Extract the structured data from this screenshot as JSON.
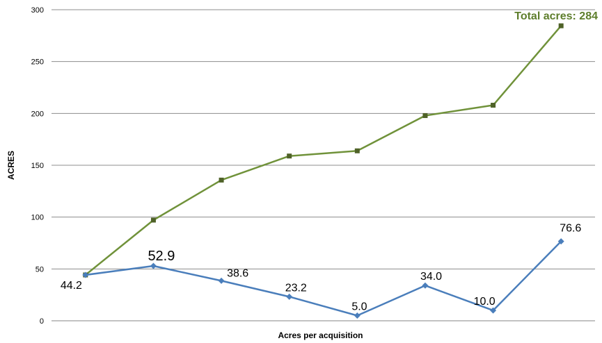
{
  "chart_data": {
    "type": "line",
    "xlabel": "Acres per acquisition",
    "ylabel": "ACRES",
    "ylim": [
      0,
      300
    ],
    "yticks": [
      0,
      50,
      100,
      150,
      200,
      250,
      300
    ],
    "grid": "horizontal",
    "x": [
      1,
      2,
      3,
      4,
      5,
      6,
      7,
      8
    ],
    "series": [
      {
        "color": "#70923A",
        "marker": "square",
        "values": [
          44.2,
          97.1,
          135.7,
          158.9,
          163.9,
          197.9,
          207.9,
          284.5
        ]
      },
      {
        "color": "#4A7EBB",
        "marker": "diamond",
        "values": [
          44.2,
          52.9,
          38.6,
          23.2,
          5.0,
          34.0,
          10.0,
          76.6
        ],
        "data_labels": [
          "44.2",
          "52.9",
          "38.6",
          "23.2",
          "5.0",
          "34.0",
          "10.0",
          "76.6"
        ]
      }
    ],
    "annotations": [
      {
        "text": "Total acres: 284",
        "color": "#5E7E2C"
      }
    ]
  }
}
